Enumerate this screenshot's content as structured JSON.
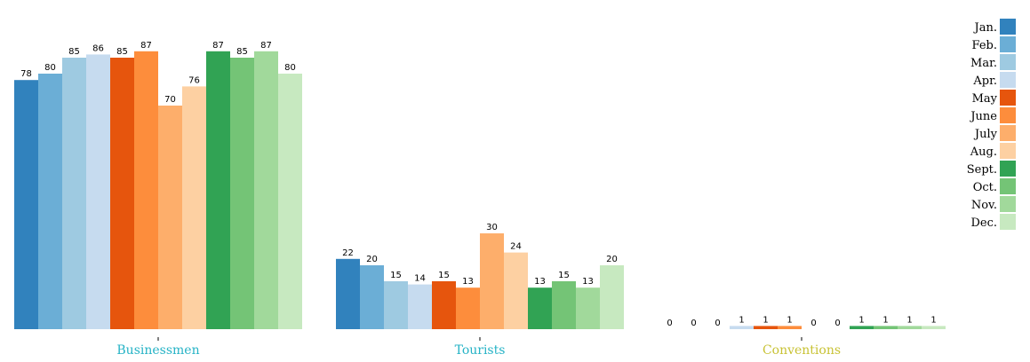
{
  "chart_data": {
    "type": "bar",
    "categories": [
      "Businessmen",
      "Tourists",
      "Conventions"
    ],
    "category_colors": [
      "#26b3c6",
      "#26b3c6",
      "#c8c234"
    ],
    "series": [
      {
        "name": "Jan.",
        "color": "#3182bd",
        "values": [
          78,
          22,
          0
        ]
      },
      {
        "name": "Feb.",
        "color": "#6baed6",
        "values": [
          80,
          20,
          0
        ]
      },
      {
        "name": "Mar.",
        "color": "#9ecae1",
        "values": [
          85,
          15,
          0
        ]
      },
      {
        "name": "Apr.",
        "color": "#c6dbef",
        "values": [
          86,
          14,
          1
        ]
      },
      {
        "name": "May",
        "color": "#e6550d",
        "values": [
          85,
          15,
          1
        ]
      },
      {
        "name": "June",
        "color": "#fd8d3c",
        "values": [
          87,
          13,
          1
        ]
      },
      {
        "name": "July",
        "color": "#fdae6b",
        "values": [
          70,
          30,
          0
        ]
      },
      {
        "name": "Aug.",
        "color": "#fdd0a2",
        "values": [
          76,
          24,
          0
        ]
      },
      {
        "name": "Sept.",
        "color": "#31a354",
        "values": [
          87,
          13,
          1
        ]
      },
      {
        "name": "Oct.",
        "color": "#74c476",
        "values": [
          85,
          15,
          1
        ]
      },
      {
        "name": "Nov.",
        "color": "#a1d99b",
        "values": [
          87,
          13,
          1
        ]
      },
      {
        "name": "Dec.",
        "color": "#c7e9c0",
        "values": [
          80,
          20,
          1
        ]
      }
    ],
    "ylim": [
      0,
      100
    ],
    "grid": false,
    "legend": "top-right",
    "show_value_labels": true
  }
}
